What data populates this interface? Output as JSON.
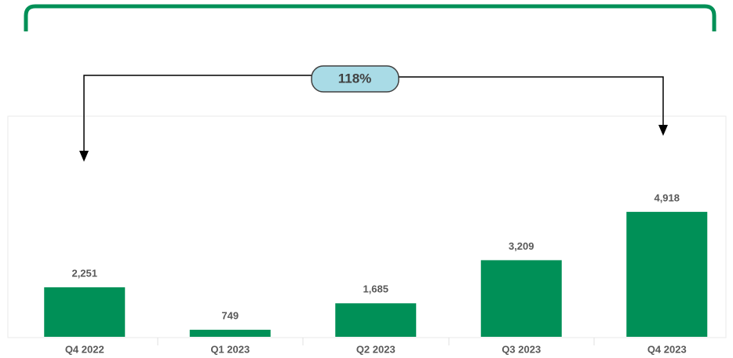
{
  "chart_data": {
    "type": "bar",
    "categories": [
      "Q4 2022",
      "Q1 2023",
      "Q2 2023",
      "Q3 2023",
      "Q4 2023"
    ],
    "values": [
      2251,
      749,
      1685,
      3209,
      4918
    ],
    "value_labels": [
      "2,251",
      "749",
      "1,685",
      "3,209",
      "4,918"
    ],
    "color": "#009057",
    "ylim": [
      500,
      8300
    ],
    "annotation": "118%"
  }
}
